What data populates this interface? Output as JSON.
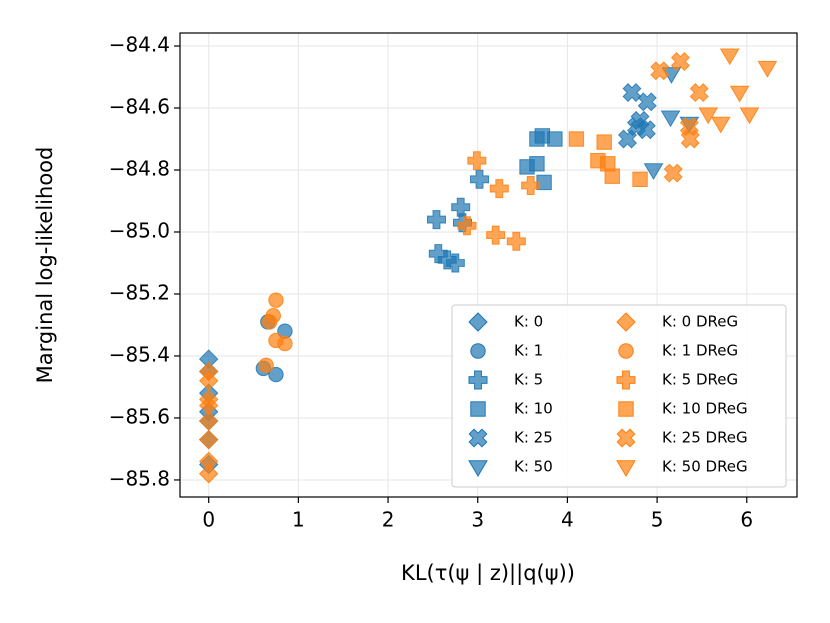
{
  "chart_data": {
    "type": "scatter",
    "xlabel": "KL(τ(ψ | z)||q(ψ))",
    "ylabel": "Marginal log-likelihood",
    "xlim": [
      -0.32,
      6.56
    ],
    "ylim": [
      -85.855,
      -84.358
    ],
    "xticks": [
      0,
      1,
      2,
      3,
      4,
      5,
      6
    ],
    "yticks": [
      {
        "value": -85.8,
        "label": "−85.8"
      },
      {
        "value": -85.6,
        "label": "−85.6"
      },
      {
        "value": -85.4,
        "label": "−85.4"
      },
      {
        "value": -85.2,
        "label": "−85.2"
      },
      {
        "value": -85.0,
        "label": "−85.0"
      },
      {
        "value": -84.8,
        "label": "−84.8"
      },
      {
        "value": -84.6,
        "label": "−84.6"
      },
      {
        "value": -84.4,
        "label": "−84.4"
      }
    ],
    "grid": true,
    "legend": "lower right",
    "series": [
      {
        "name": "K: 0",
        "color": "#1f77b4",
        "marker": "diamond",
        "x": [
          0,
          0,
          0,
          0,
          0,
          0,
          0
        ],
        "y": [
          -85.41,
          -85.45,
          -85.52,
          -85.58,
          -85.61,
          -85.67,
          -85.75
        ]
      },
      {
        "name": "K: 1",
        "color": "#1f77b4",
        "marker": "circle",
        "x": [
          0.61,
          0.75,
          0.85,
          0.66
        ],
        "y": [
          -85.44,
          -85.46,
          -85.32,
          -85.29
        ]
      },
      {
        "name": "K: 5",
        "color": "#1f77b4",
        "marker": "plus",
        "x": [
          2.54,
          2.56,
          2.66,
          2.75,
          2.81,
          2.83,
          3.02
        ],
        "y": [
          -84.96,
          -85.07,
          -85.09,
          -85.1,
          -84.92,
          -84.97,
          -84.83
        ]
      },
      {
        "name": "K: 10",
        "color": "#1f77b4",
        "marker": "square",
        "x": [
          3.66,
          3.72,
          3.86,
          3.55,
          3.66,
          3.74
        ],
        "y": [
          -84.7,
          -84.69,
          -84.7,
          -84.79,
          -84.78,
          -84.84
        ]
      },
      {
        "name": "K: 25",
        "color": "#1f77b4",
        "marker": "x",
        "x": [
          4.72,
          4.89,
          4.81,
          4.77,
          4.88,
          4.67
        ],
        "y": [
          -84.55,
          -84.58,
          -84.64,
          -84.66,
          -84.67,
          -84.7
        ]
      },
      {
        "name": "K: 50",
        "color": "#1f77b4",
        "marker": "triangle",
        "x": [
          5.16,
          5.15,
          5.36,
          4.96
        ],
        "y": [
          -84.49,
          -84.63,
          -84.65,
          -84.8
        ]
      },
      {
        "name": "K: 0 DReG",
        "color": "#ff7f0e",
        "marker": "diamond",
        "x": [
          0,
          0,
          0,
          0,
          0,
          0,
          0,
          0
        ],
        "y": [
          -85.45,
          -85.48,
          -85.54,
          -85.56,
          -85.61,
          -85.67,
          -85.74,
          -85.78
        ]
      },
      {
        "name": "K: 1 DReG",
        "color": "#ff7f0e",
        "marker": "circle",
        "x": [
          0.75,
          0.72,
          0.68,
          0.75,
          0.85,
          0.64
        ],
        "y": [
          -85.22,
          -85.27,
          -85.29,
          -85.35,
          -85.36,
          -85.43
        ]
      },
      {
        "name": "K: 5 DReG",
        "color": "#ff7f0e",
        "marker": "plus",
        "x": [
          2.99,
          2.88,
          3.24,
          3.2,
          3.43,
          3.59
        ],
        "y": [
          -84.77,
          -84.98,
          -84.86,
          -85.01,
          -85.03,
          -84.85
        ]
      },
      {
        "name": "K: 10 DReG",
        "color": "#ff7f0e",
        "marker": "square",
        "x": [
          4.1,
          4.41,
          4.34,
          4.45,
          4.5,
          4.81
        ],
        "y": [
          -84.7,
          -84.71,
          -84.77,
          -84.78,
          -84.82,
          -84.83
        ]
      },
      {
        "name": "K: 25 DReG",
        "color": "#ff7f0e",
        "marker": "x",
        "x": [
          5.03,
          5.26,
          5.47,
          5.36,
          5.37,
          5.18
        ],
        "y": [
          -84.48,
          -84.45,
          -84.55,
          -84.66,
          -84.7,
          -84.81
        ]
      },
      {
        "name": "K: 50 DReG",
        "color": "#ff7f0e",
        "marker": "triangle",
        "x": [
          5.81,
          6.23,
          5.92,
          5.57,
          5.71,
          6.03
        ],
        "y": [
          -84.43,
          -84.47,
          -84.55,
          -84.62,
          -84.65,
          -84.62
        ]
      }
    ]
  }
}
